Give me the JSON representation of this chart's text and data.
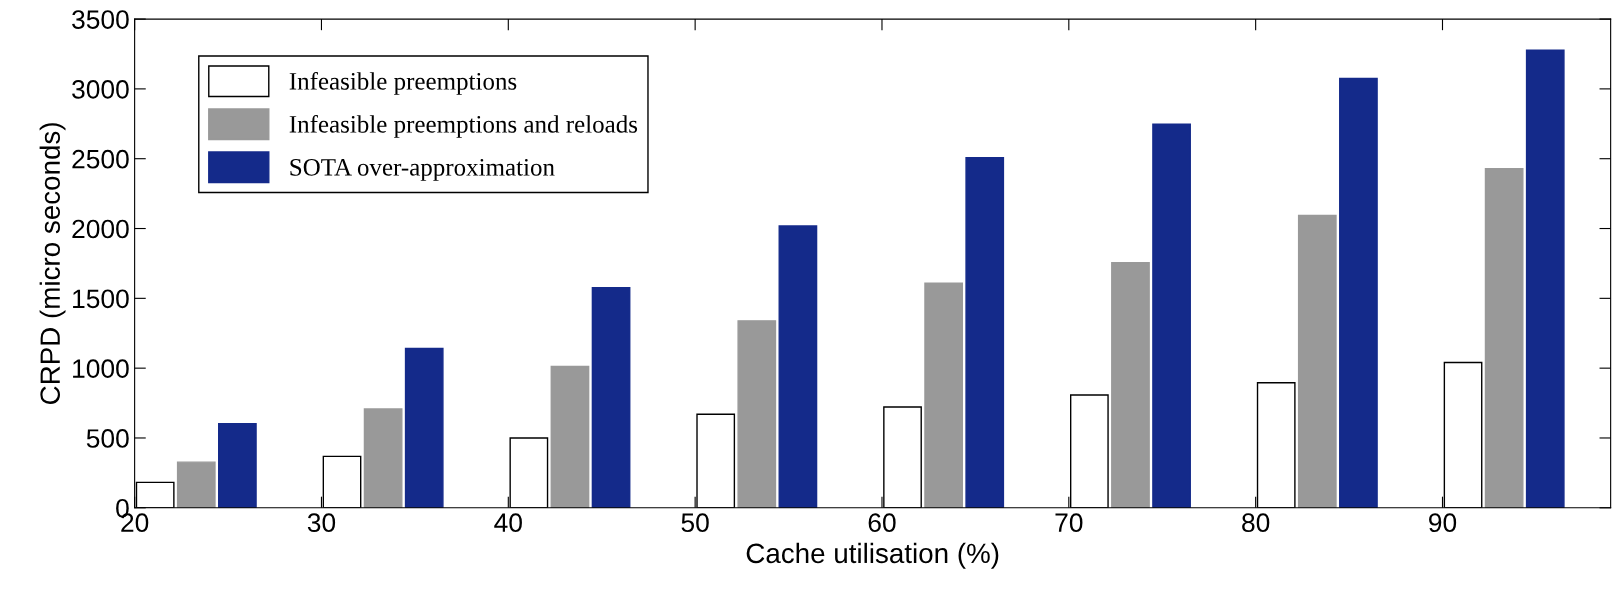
{
  "chart_data": {
    "type": "bar",
    "xlabel": "Cache utilisation (%)",
    "ylabel": "CRPD (micro seconds)",
    "xlim": [
      20,
      99
    ],
    "xticks": [
      20,
      30,
      40,
      50,
      60,
      70,
      80,
      90
    ],
    "ylim": [
      0,
      3500
    ],
    "yticks": [
      0,
      500,
      1000,
      1500,
      2000,
      2500,
      3000,
      3500
    ],
    "grid": false,
    "legend": "top left",
    "series": [
      {
        "name": "Infeasible preemptions",
        "color": "#ffffff",
        "x": [
          21.1,
          31.1,
          41.1,
          51.1,
          61.1,
          71.1,
          81.1,
          91.1
        ],
        "values": [
          182,
          368,
          500,
          670,
          722,
          808,
          895,
          1041
        ]
      },
      {
        "name": "Infeasible preemptions and reloads",
        "color": "#999999",
        "x": [
          23.3,
          33.3,
          43.3,
          53.3,
          63.3,
          73.3,
          83.3,
          93.3
        ],
        "values": [
          327,
          708,
          1012,
          1339,
          1609,
          1756,
          2094,
          2429
        ]
      },
      {
        "name": "SOTA over-approximation",
        "color": "#142a8a",
        "x": [
          25.5,
          35.5,
          45.5,
          55.5,
          65.5,
          75.5,
          85.5,
          95.5
        ],
        "values": [
          602,
          1141,
          1576,
          2018,
          2508,
          2748,
          3075,
          3278
        ]
      }
    ]
  }
}
